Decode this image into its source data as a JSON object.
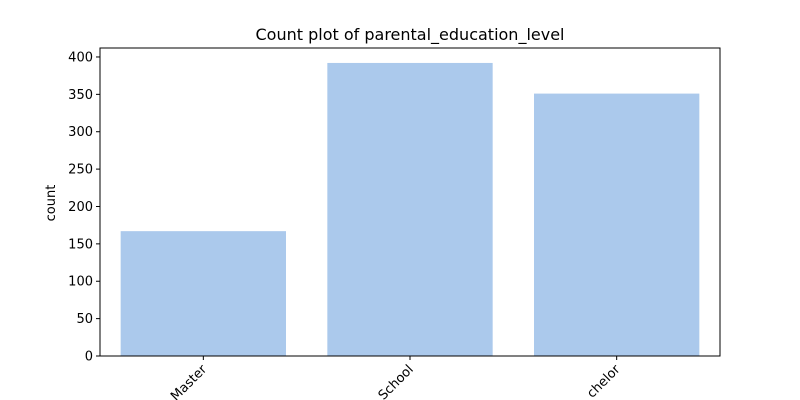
{
  "chart_data": {
    "type": "bar",
    "title": "Count plot of parental_education_level",
    "xlabel": "",
    "ylabel": "count",
    "categories": [
      "Master",
      "High School",
      "Bachelor"
    ],
    "tick_labels_shown": [
      "Master",
      "School",
      "chelor"
    ],
    "values": [
      167,
      392,
      351
    ],
    "ylim": [
      0,
      412
    ],
    "yticks": [
      0,
      50,
      100,
      150,
      200,
      250,
      300,
      350,
      400
    ],
    "bar_color": "#abc9ec",
    "grid": false,
    "x_tick_rotation": 45
  }
}
